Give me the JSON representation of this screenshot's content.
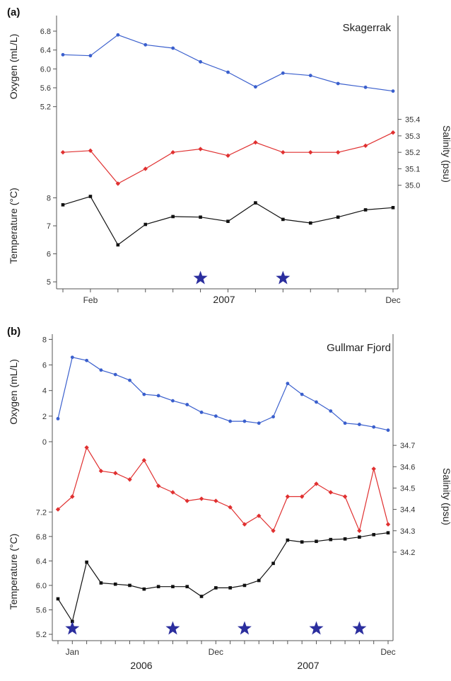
{
  "chart_data": [
    {
      "type": "line",
      "panel_label": "(a)",
      "title": "Skagerrak",
      "xlabel": "2007",
      "x_ticks": [
        "Feb",
        "Dec"
      ],
      "x": [
        1,
        2,
        3,
        4,
        5,
        6,
        7,
        8,
        9,
        10,
        11,
        12,
        13
      ],
      "oxygen": {
        "axis_label": "Oxygen (mL/L)",
        "color": "#3a5fcd",
        "ylim": [
          5.0,
          7.1
        ],
        "ticks": [
          "5.2",
          "5.6",
          "6.0",
          "6.4",
          "6.8"
        ],
        "values": [
          6.3,
          6.28,
          6.72,
          6.51,
          6.44,
          6.15,
          5.93,
          5.62,
          5.91,
          5.86,
          5.69,
          5.61,
          5.53
        ]
      },
      "salinity": {
        "axis_label": "Salinity (psu)",
        "color": "#e03030",
        "ylim": [
          34.9,
          35.48
        ],
        "ticks": [
          "35.0",
          "35.1",
          "35.2",
          "35.3",
          "35.4"
        ],
        "values": [
          35.2,
          35.21,
          35.01,
          35.1,
          35.2,
          35.22,
          35.18,
          35.26,
          35.2,
          35.2,
          35.2,
          35.24,
          35.32
        ]
      },
      "temperature": {
        "axis_label": "Temperature (°C)",
        "color": "#111111",
        "ylim": [
          4.7,
          9.3
        ],
        "ticks": [
          "5",
          "6",
          "7",
          "8"
        ],
        "values": [
          7.75,
          8.05,
          6.32,
          7.05,
          7.33,
          7.31,
          7.16,
          7.82,
          7.23,
          7.1,
          7.31,
          7.57,
          7.65
        ]
      },
      "stars": [
        6,
        9
      ]
    },
    {
      "type": "line",
      "panel_label": "(b)",
      "title": "Gullmar Fjord",
      "xlabel": "",
      "x_ticks": [
        "Jan",
        "Dec",
        "Dec"
      ],
      "year_labels": [
        "2006",
        "2007"
      ],
      "x": [
        1,
        2,
        3,
        4,
        5,
        6,
        7,
        8,
        9,
        10,
        11,
        12,
        13,
        14,
        15,
        16,
        17,
        18,
        19,
        20,
        21,
        22,
        23,
        24
      ],
      "oxygen": {
        "axis_label": "Oxygen (mL/L)",
        "color": "#3a5fcd",
        "ylim": [
          -0.5,
          8.3
        ],
        "ticks": [
          "0",
          "2",
          "4",
          "6",
          "8"
        ],
        "values": [
          1.8,
          6.6,
          6.35,
          5.6,
          5.25,
          4.8,
          3.7,
          3.6,
          3.2,
          2.9,
          2.3,
          2.0,
          1.6,
          1.6,
          1.45,
          1.95,
          4.55,
          3.7,
          3.1,
          2.4,
          1.45,
          1.35,
          1.15,
          0.9
        ]
      },
      "salinity": {
        "axis_label": "Salinity (psu)",
        "color": "#e03030",
        "ylim": [
          34.14,
          34.78
        ],
        "ticks": [
          "34.2",
          "34.3",
          "34.4",
          "34.5",
          "34.6",
          "34.7"
        ],
        "values": [
          34.4,
          34.46,
          34.69,
          34.58,
          34.57,
          34.54,
          34.63,
          34.51,
          34.48,
          34.44,
          34.45,
          34.44,
          34.41,
          34.33,
          34.37,
          34.3,
          34.46,
          34.46,
          34.52,
          34.48,
          34.46,
          34.3,
          34.59,
          34.33
        ]
      },
      "temperature": {
        "axis_label": "Temperature (°C)",
        "color": "#111111",
        "ylim": [
          5.05,
          7.4
        ],
        "ticks": [
          "5.2",
          "5.6",
          "6.0",
          "6.4",
          "6.8",
          "7.2"
        ],
        "values": [
          5.78,
          5.41,
          6.38,
          6.04,
          6.02,
          6.0,
          5.94,
          5.98,
          5.98,
          5.98,
          5.82,
          5.96,
          5.96,
          6.0,
          6.08,
          6.36,
          6.74,
          6.71,
          6.72,
          6.75,
          6.76,
          6.79,
          6.83,
          6.86
        ]
      },
      "stars": [
        2,
        9,
        14,
        19,
        22
      ]
    }
  ],
  "star_color": "#2b2e9e"
}
